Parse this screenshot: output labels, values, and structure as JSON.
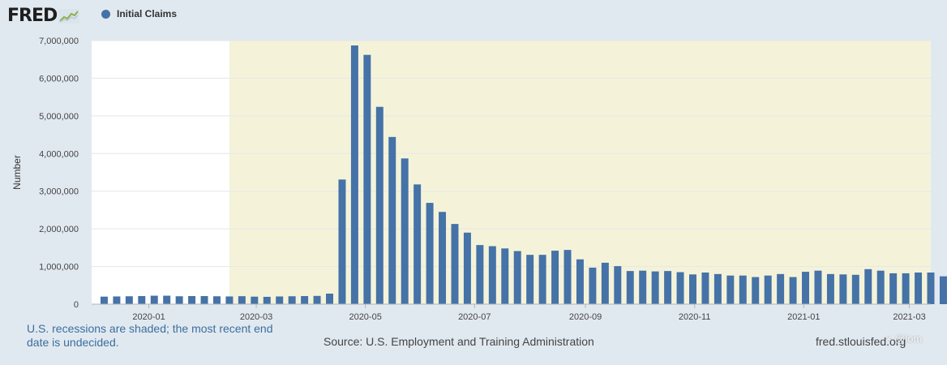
{
  "header": {
    "logo_text": "FRED",
    "logo_icon": "line-chart-icon"
  },
  "colors": {
    "bar": "#4572a7",
    "recession": "#f4f3da",
    "plot_bg": "#ffffff",
    "grid": "#e6e6e6",
    "footnote": "#3b6e9e"
  },
  "footer": {
    "footnote": "U.S. recessions are shaded; the most recent end date is undecided.",
    "source": "Source: U.S. Employment and Training Administration",
    "url": "fred.stlouisfed.org",
    "watermark": "× @lom"
  },
  "chart_data": {
    "type": "bar",
    "title": "",
    "xlabel": "",
    "ylabel": "Number",
    "legend": [
      "Initial Claims"
    ],
    "ylim": [
      0,
      7000000
    ],
    "yticks": [
      0,
      1000000,
      2000000,
      3000000,
      4000000,
      5000000,
      6000000,
      7000000
    ],
    "ytick_labels": [
      "0",
      "1,000,000",
      "2,000,000",
      "3,000,000",
      "4,000,000",
      "5,000,000",
      "6,000,000",
      "7,000,000"
    ],
    "x_start": "2019-11-30",
    "x_end": "2021-03-13",
    "xtick_labels": [
      "2020-01",
      "2020-03",
      "2020-05",
      "2020-07",
      "2020-09",
      "2020-11",
      "2021-01",
      "2021-03"
    ],
    "xtick_dates": [
      "2020-01-01",
      "2020-03-01",
      "2020-05-01",
      "2020-07-01",
      "2020-09-01",
      "2020-11-01",
      "2021-01-01",
      "2021-03-01"
    ],
    "recession_start": "2020-02-15",
    "recession_end": null,
    "first_week": "2019-12-07",
    "week_days": 7,
    "series": [
      {
        "name": "Initial Claims",
        "values": [
          200000,
          205000,
          210000,
          215000,
          225000,
          225000,
          210000,
          215000,
          215000,
          210000,
          205000,
          212000,
          200000,
          195000,
          205000,
          210000,
          215000,
          220000,
          280000,
          3310000,
          6870000,
          6620000,
          5240000,
          4440000,
          3870000,
          3180000,
          2690000,
          2450000,
          2130000,
          1900000,
          1570000,
          1540000,
          1480000,
          1410000,
          1310000,
          1310000,
          1420000,
          1440000,
          1190000,
          970000,
          1100000,
          1010000,
          880000,
          890000,
          870000,
          880000,
          850000,
          790000,
          840000,
          800000,
          760000,
          760000,
          720000,
          760000,
          800000,
          720000,
          860000,
          890000,
          800000,
          790000,
          780000,
          930000,
          890000,
          820000,
          820000,
          840000,
          840000,
          740000,
          760000,
          712000
        ]
      }
    ]
  }
}
